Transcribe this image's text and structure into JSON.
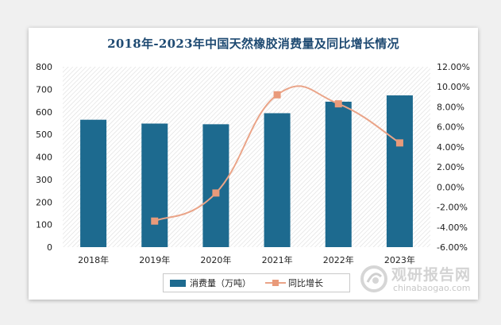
{
  "chart_data": {
    "type": "bar",
    "title": "2018年-2023年中国天然橡胶消费量及同比增长情况",
    "categories": [
      "2018年",
      "2019年",
      "2020年",
      "2021年",
      "2022年",
      "2023年"
    ],
    "series": [
      {
        "name": "消费量（万吨）",
        "type": "bar",
        "axis": "left",
        "color": "#1d6a8f",
        "values": [
          565,
          548,
          545,
          594,
          645,
          673
        ]
      },
      {
        "name": "同比增长",
        "type": "line",
        "axis": "right",
        "color": "#eaa488",
        "values": [
          null,
          -3.4,
          -0.6,
          9.2,
          8.3,
          4.4
        ]
      }
    ],
    "y_left": {
      "ylim": [
        0,
        800
      ],
      "ticks": [
        "0",
        "100",
        "200",
        "300",
        "400",
        "500",
        "600",
        "700",
        "800"
      ]
    },
    "y_right": {
      "ylim": [
        -6,
        12
      ],
      "ticks": [
        "-6.00%",
        "-4.00%",
        "-2.00%",
        "0.00%",
        "2.00%",
        "4.00%",
        "6.00%",
        "8.00%",
        "10.00%",
        "12.00%"
      ]
    },
    "grid": false,
    "legend_position": "bottom"
  },
  "watermark": {
    "cn": "观研报告网",
    "en": "chinabaogao.com"
  }
}
